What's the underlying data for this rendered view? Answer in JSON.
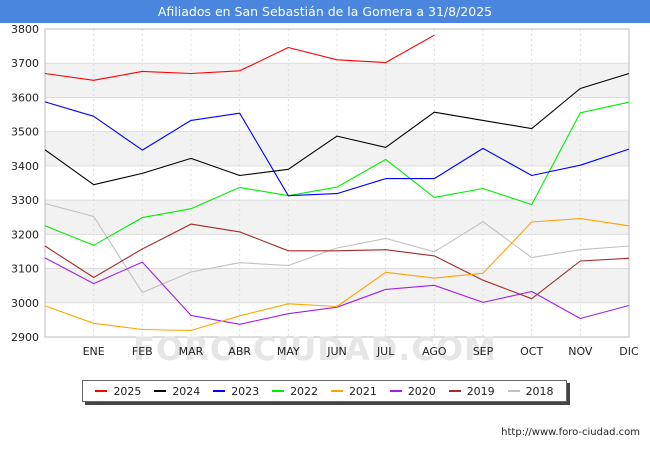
{
  "header": {
    "title": "Afiliados en San Sebastián de la Gomera a 31/8/2025"
  },
  "source": "http://www.foro-ciudad.com",
  "watermark": "FORO-CIUDAD.COM",
  "chart_data": {
    "type": "line",
    "categories": [
      "",
      "ENE",
      "FEB",
      "MAR",
      "ABR",
      "MAY",
      "JUN",
      "JUL",
      "AGO",
      "SEP",
      "OCT",
      "NOV",
      "DIC"
    ],
    "ylim": [
      2900,
      3800
    ],
    "yticks": [
      2900,
      3000,
      3100,
      3200,
      3300,
      3400,
      3500,
      3600,
      3700,
      3800
    ],
    "grid": true,
    "legend_position": "bottom",
    "series": [
      {
        "name": "2025",
        "color": "#ff0000",
        "values": [
          3670,
          3650,
          3676,
          3670,
          3678,
          3746,
          3710,
          3702,
          3782,
          null,
          null,
          null,
          null
        ]
      },
      {
        "name": "2024",
        "color": "#000000",
        "values": [
          3447,
          3345,
          3378,
          3422,
          3372,
          3390,
          3487,
          3454,
          3557,
          3533,
          3509,
          3626,
          3670
        ]
      },
      {
        "name": "2023",
        "color": "#0000ff",
        "values": [
          3587,
          3545,
          3446,
          3533,
          3554,
          3313,
          3319,
          3363,
          3363,
          3451,
          3372,
          3402,
          3449
        ]
      },
      {
        "name": "2022",
        "color": "#00ee00",
        "values": [
          3225,
          3168,
          3249,
          3275,
          3337,
          3313,
          3338,
          3419,
          3308,
          3334,
          3287,
          3555,
          3586
        ]
      },
      {
        "name": "2021",
        "color": "#ffa500",
        "values": [
          2991,
          2940,
          2922,
          2919,
          2962,
          2997,
          2989,
          3089,
          3072,
          3086,
          3236,
          3246,
          3225
        ]
      },
      {
        "name": "2020",
        "color": "#a020f0",
        "values": [
          3131,
          3056,
          3119,
          2963,
          2937,
          2968,
          2987,
          3039,
          3051,
          3001,
          3033,
          2954,
          2992
        ]
      },
      {
        "name": "2019",
        "color": "#a52a2a",
        "values": [
          3166,
          3074,
          3157,
          3230,
          3207,
          3152,
          3152,
          3155,
          3137,
          3066,
          3012,
          3122,
          3130
        ]
      },
      {
        "name": "2018",
        "color": "#c0c0c0",
        "values": [
          3290,
          3252,
          3030,
          3090,
          3117,
          3109,
          3160,
          3188,
          3149,
          3237,
          3132,
          3155,
          3166
        ]
      }
    ]
  }
}
